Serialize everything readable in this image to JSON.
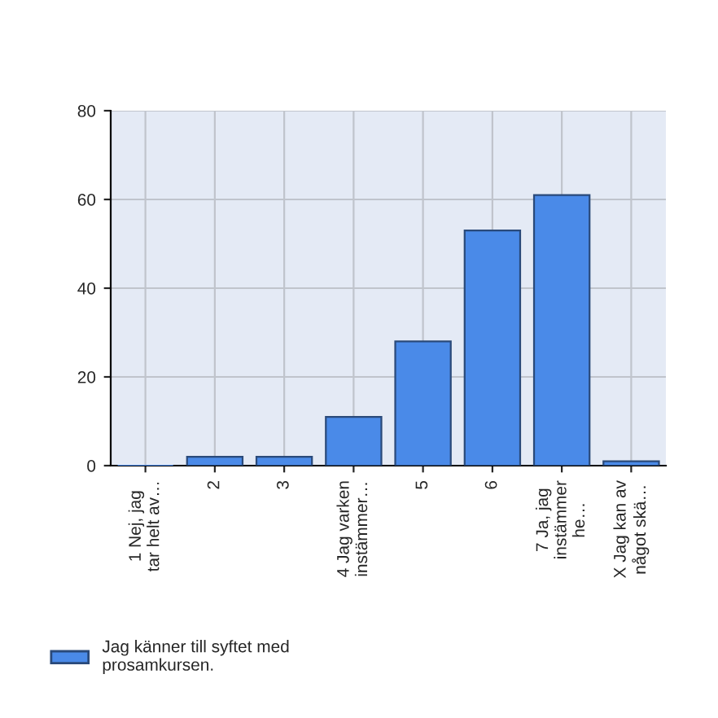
{
  "chart_data": {
    "type": "bar",
    "categories": [
      "1 Nej, jag\ntar helt av…",
      "2",
      "3",
      "4 Jag varken\ninstämmer…",
      "5",
      "6",
      "7 Ja, jag\ninstämmer\nhe…",
      "X Jag kan av\nnågot skä…"
    ],
    "series": [
      {
        "name": "Jag känner till syftet med\nprosamkursen.",
        "color": "#4a8ae8",
        "values": [
          0,
          2,
          2,
          11,
          28,
          53,
          61,
          1
        ]
      }
    ],
    "ylim": [
      0,
      80
    ],
    "yticks": [
      0,
      20,
      40,
      60,
      80
    ],
    "grid": true,
    "legend": "bottom left"
  }
}
